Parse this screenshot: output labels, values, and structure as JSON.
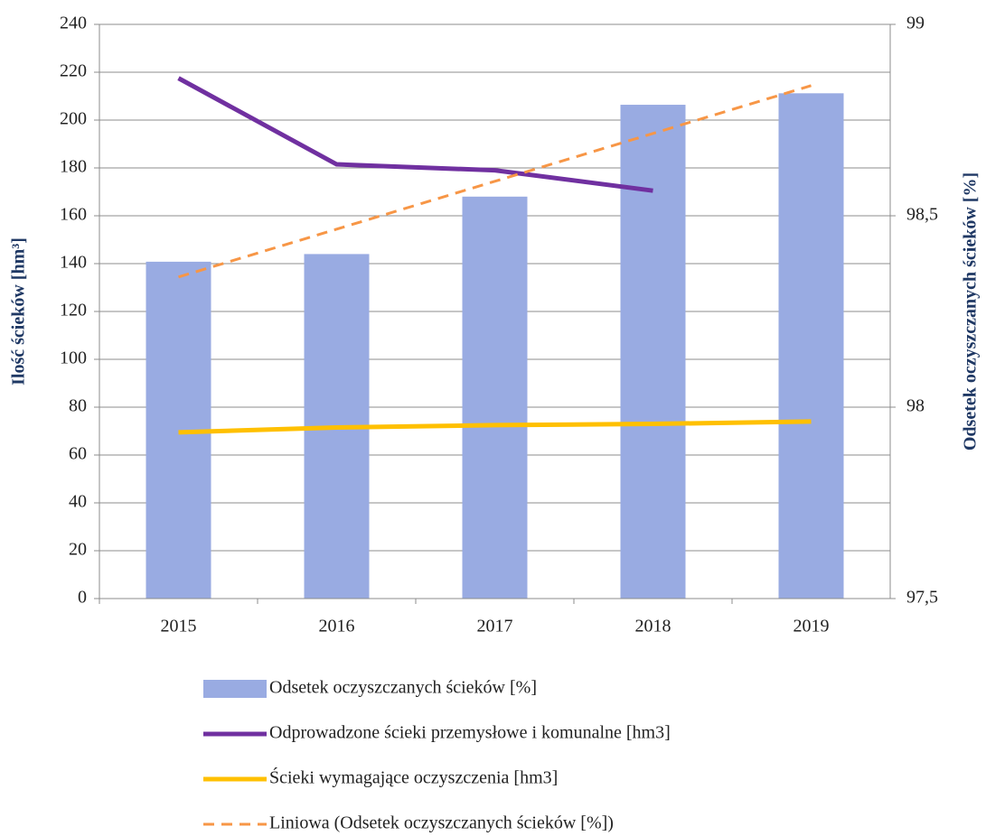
{
  "chart_data": {
    "type": "bar-line",
    "y_label": "Ilość ścieków [hm³]",
    "y2_label": "Odsetek oczyszczanych ścieków [%]",
    "categories": [
      "2015",
      "2016",
      "2017",
      "2018",
      "2019"
    ],
    "ylim": [
      0,
      240
    ],
    "yticks": [
      0,
      20,
      40,
      60,
      80,
      100,
      120,
      140,
      160,
      180,
      200,
      220,
      240
    ],
    "y2lim": [
      97.5,
      99
    ],
    "y2ticks": [
      {
        "value": 97.5,
        "label": "97,5"
      },
      98,
      {
        "value": 98.5,
        "label": "98,5"
      },
      99
    ],
    "grid": true,
    "series": [
      {
        "name": "Odsetek oczyszczanych ścieków [%]",
        "type": "bar",
        "axis": "y2",
        "color": "#99abe2",
        "values": [
          98.38,
          98.4,
          98.55,
          98.79,
          98.82
        ]
      },
      {
        "name": "Odprowadzone ścieki przemysłowe i komunalne [hm3]",
        "type": "line",
        "color": "#7030a0",
        "values": [
          217.5,
          181.5,
          179,
          170.5,
          null
        ]
      },
      {
        "name": "Ścieki wymagające oczyszczenia [hm3]",
        "type": "line",
        "color": "#ffc000",
        "values": [
          69.5,
          71.5,
          72.5,
          73,
          74
        ]
      },
      {
        "name": "Liniowa (Odsetek oczyszczanych ścieków [%])",
        "type": "dashed",
        "axis": "y2",
        "color": "#f79646",
        "values": [
          98.34,
          98.465,
          98.59,
          98.715,
          98.84
        ]
      }
    ]
  }
}
